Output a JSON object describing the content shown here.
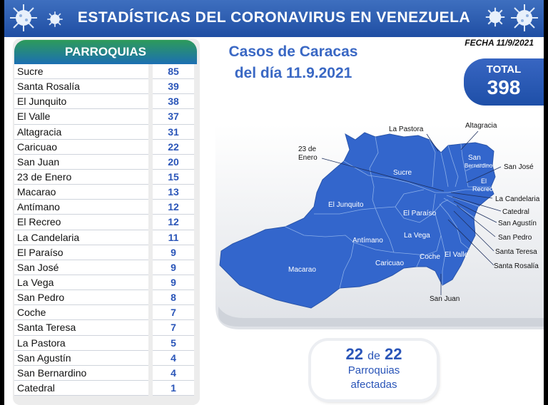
{
  "banner": {
    "title": "ESTADÍSTICAS DEL CORONAVIRUS EN VENEZUELA"
  },
  "table": {
    "header": "PARROQUIAS",
    "rows": [
      {
        "name": "Sucre",
        "value": "85"
      },
      {
        "name": "Santa Rosalía",
        "value": "39"
      },
      {
        "name": "El Junquito",
        "value": "38"
      },
      {
        "name": "El Valle",
        "value": "37"
      },
      {
        "name": "Altagracia",
        "value": "31"
      },
      {
        "name": "Caricuao",
        "value": "22"
      },
      {
        "name": "San Juan",
        "value": "20"
      },
      {
        "name": "23 de Enero",
        "value": "15"
      },
      {
        "name": "Macarao",
        "value": "13"
      },
      {
        "name": "Antímano",
        "value": "12"
      },
      {
        "name": "El Recreo",
        "value": "12"
      },
      {
        "name": "La Candelaria",
        "value": "11"
      },
      {
        "name": "El Paraíso",
        "value": "9"
      },
      {
        "name": "San José",
        "value": "9"
      },
      {
        "name": "La Vega",
        "value": "9"
      },
      {
        "name": "San Pedro",
        "value": "8"
      },
      {
        "name": "Coche",
        "value": "7"
      },
      {
        "name": "Santa Teresa",
        "value": "7"
      },
      {
        "name": "La Pastora",
        "value": "5"
      },
      {
        "name": "San Agustín",
        "value": "4"
      },
      {
        "name": "San Bernardino",
        "value": "4"
      },
      {
        "name": "Catedral",
        "value": "1"
      }
    ]
  },
  "date_label": "FECHA 11/9/2021",
  "caracas": {
    "line1": "Casos de Caracas",
    "line2": "del día 11.9.2021"
  },
  "total": {
    "label": "TOTAL",
    "value": "398"
  },
  "map": {
    "labels": {
      "la_pastora": "La Pastora",
      "altagracia": "Altagracia",
      "enero_1": "23 de",
      "enero_2": "Enero",
      "sucre": "Sucre",
      "san_bernardino_1": "San",
      "san_bernardino_2": "Bernardino",
      "san_jose": "San José",
      "el_recreo_1": "El",
      "el_recreo_2": "Recreo",
      "la_candelaria": "La Candelaria",
      "el_junquito": "El Junquito",
      "catedral": "Catedral",
      "el_paraiso": "El Paraíso",
      "san_agustin": "San Agustín",
      "la_vega": "La Vega",
      "san_pedro": "San Pedro",
      "antimano": "Antímano",
      "santa_teresa": "Santa Teresa",
      "coche": "Coche",
      "el_valle": "El Valle",
      "caricuao": "Caricuao",
      "santa_rosalia": "Santa Rosalía",
      "macarao": "Macarao",
      "san_juan": "San Juan"
    }
  },
  "affected": {
    "count": "22",
    "of_word": "de",
    "total": "22",
    "line1": "Parroquias",
    "line2": "afectadas"
  },
  "colors": {
    "banner": "#2a5bb3",
    "map_fill": "#3366cc",
    "value_text": "#2a55b8",
    "header_green": "#2d9b5a"
  }
}
